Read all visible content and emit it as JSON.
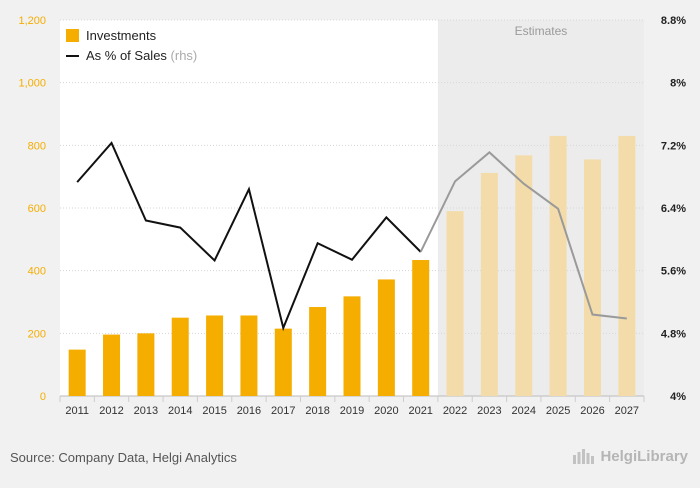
{
  "chart_data": {
    "type": "bar+line",
    "categories": [
      "2011",
      "2012",
      "2013",
      "2014",
      "2015",
      "2016",
      "2017",
      "2018",
      "2019",
      "2020",
      "2021",
      "2022",
      "2023",
      "2024",
      "2025",
      "2026",
      "2027"
    ],
    "series": [
      {
        "name": "Investments",
        "axis": "left",
        "values": [
          148,
          196,
          200,
          250,
          257,
          257,
          215,
          284,
          318,
          372,
          434,
          590,
          712,
          768,
          830,
          755,
          830
        ]
      },
      {
        "name": "As % of Sales",
        "axis": "right",
        "values": [
          6.73,
          7.23,
          6.24,
          6.15,
          5.73,
          6.64,
          4.87,
          5.95,
          5.74,
          6.28,
          5.84,
          6.74,
          7.11,
          6.71,
          6.39,
          5.04,
          4.99
        ]
      }
    ],
    "legend": {
      "items": [
        {
          "label": "Investments",
          "suffix": ""
        },
        {
          "label": "As % of Sales",
          "suffix": "(rhs)"
        }
      ],
      "placement": "top-left"
    },
    "estimates_label": "Estimates",
    "estimates_from_index": 11,
    "y_left": {
      "min": 0,
      "max": 1200,
      "ticks": [
        "0",
        "200",
        "400",
        "600",
        "800",
        "1,000",
        "1,200"
      ]
    },
    "y_right": {
      "min": 4,
      "max": 8.8,
      "ticks": [
        "4%",
        "4.8%",
        "5.6%",
        "6.4%",
        "7.2%",
        "8%",
        "8.8%"
      ]
    },
    "grid": true,
    "colors": {
      "bar": "#f5ad00",
      "bar_estimate": "#f3dcaa",
      "line": "#111111",
      "line_estimate": "#9a9a9a",
      "left_axis_text": "#f5ad00",
      "estimate_band": "#ececec"
    }
  },
  "footer": {
    "source": "Source: Company Data, Helgi Analytics",
    "logo_text": "HelgiLibrary"
  }
}
